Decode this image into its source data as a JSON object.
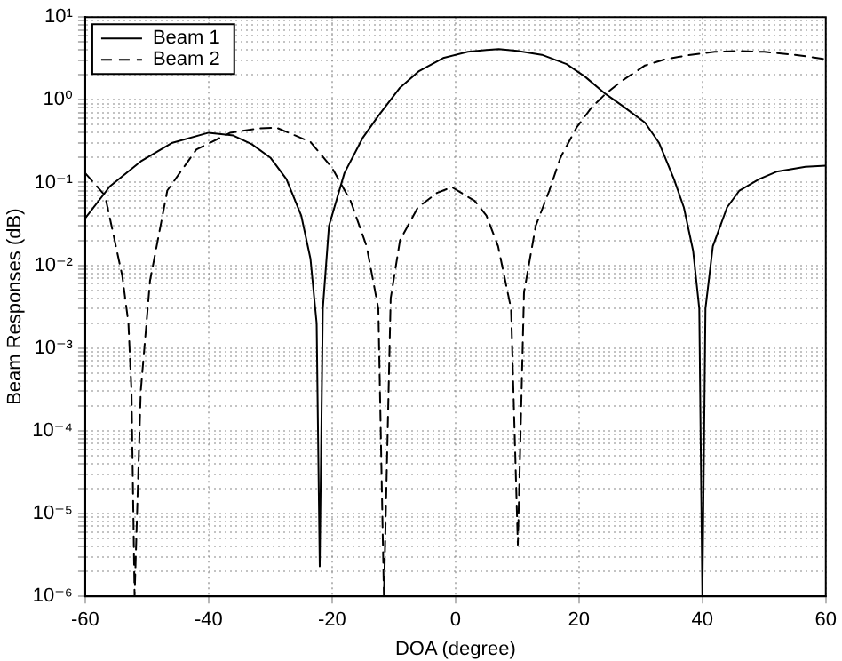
{
  "chart_data": {
    "type": "line",
    "xlabel": "DOA (degree)",
    "ylabel": "Beam Responses (dB)",
    "log": "y",
    "grid": true,
    "legend": "top left",
    "marker": "none",
    "xlim": [
      -60,
      60
    ],
    "xticks": [
      -60,
      -40,
      -20,
      0,
      20,
      40,
      60
    ],
    "ylim": [
      1e-06,
      10
    ],
    "yticks": [
      {
        "value": 1e-06,
        "label": "10⁻⁶"
      },
      {
        "value": 2e-06,
        "label": null
      },
      {
        "value": 3e-06,
        "label": null
      },
      {
        "value": 4e-06,
        "label": null
      },
      {
        "value": 5e-06,
        "label": null
      },
      {
        "value": 6e-06,
        "label": null
      },
      {
        "value": 7e-06,
        "label": null
      },
      {
        "value": 8e-06,
        "label": null
      },
      {
        "value": 9e-06,
        "label": null
      },
      {
        "value": 1e-05,
        "label": "10⁻⁵"
      },
      {
        "value": 2e-05,
        "label": null
      },
      {
        "value": 3e-05,
        "label": null
      },
      {
        "value": 4e-05,
        "label": null
      },
      {
        "value": 5e-05,
        "label": null
      },
      {
        "value": 6e-05,
        "label": null
      },
      {
        "value": 7e-05,
        "label": null
      },
      {
        "value": 8e-05,
        "label": null
      },
      {
        "value": 9e-05,
        "label": null
      },
      {
        "value": 0.0001,
        "label": "10⁻⁴"
      },
      {
        "value": 0.0002,
        "label": null
      },
      {
        "value": 0.0003,
        "label": null
      },
      {
        "value": 0.0004,
        "label": null
      },
      {
        "value": 0.0005,
        "label": null
      },
      {
        "value": 0.0006,
        "label": null
      },
      {
        "value": 0.0007,
        "label": null
      },
      {
        "value": 0.0008,
        "label": null
      },
      {
        "value": 0.0009,
        "label": null
      },
      {
        "value": 0.001,
        "label": "10⁻³"
      },
      {
        "value": 0.002,
        "label": null
      },
      {
        "value": 0.003,
        "label": null
      },
      {
        "value": 0.004,
        "label": null
      },
      {
        "value": 0.005,
        "label": null
      },
      {
        "value": 0.006,
        "label": null
      },
      {
        "value": 0.007,
        "label": null
      },
      {
        "value": 0.008,
        "label": null
      },
      {
        "value": 0.009,
        "label": null
      },
      {
        "value": 0.01,
        "label": "10⁻²"
      },
      {
        "value": 0.02,
        "label": null
      },
      {
        "value": 0.03,
        "label": null
      },
      {
        "value": 0.04,
        "label": null
      },
      {
        "value": 0.05,
        "label": null
      },
      {
        "value": 0.06,
        "label": null
      },
      {
        "value": 0.07,
        "label": null
      },
      {
        "value": 0.08,
        "label": null
      },
      {
        "value": 0.09,
        "label": null
      },
      {
        "value": 0.1,
        "label": "10⁻¹"
      },
      {
        "value": 0.2,
        "label": null
      },
      {
        "value": 0.3,
        "label": null
      },
      {
        "value": 0.4,
        "label": null
      },
      {
        "value": 0.5,
        "label": null
      },
      {
        "value": 0.6,
        "label": null
      },
      {
        "value": 0.7,
        "label": null
      },
      {
        "value": 0.8,
        "label": null
      },
      {
        "value": 0.9,
        "label": null
      },
      {
        "value": 1,
        "label": "10⁰"
      },
      {
        "value": 2,
        "label": null
      },
      {
        "value": 3,
        "label": null
      },
      {
        "value": 4,
        "label": null
      },
      {
        "value": 5,
        "label": null
      },
      {
        "value": 6,
        "label": null
      },
      {
        "value": 7,
        "label": null
      },
      {
        "value": 8,
        "label": null
      },
      {
        "value": 9,
        "label": null
      },
      {
        "value": 10,
        "label": "10¹"
      }
    ],
    "series": [
      {
        "name": "Beam 1",
        "color": "#000000",
        "line_style": "solid",
        "x": [
          -60,
          -56,
          -51,
          -46,
          -40,
          -36,
          -33,
          -30,
          -27.4,
          -25,
          -23.5,
          -22.5,
          -22,
          -21.5,
          -20.5,
          -18,
          -15,
          -12.5,
          -9,
          -6,
          -2,
          2,
          5,
          7,
          10,
          14,
          18,
          21,
          24.3,
          27,
          30.7,
          33,
          35.4,
          37,
          38.5,
          39.5,
          40,
          40.5,
          41.7,
          44,
          46,
          49.2,
          52,
          56.7,
          60
        ],
        "values": [
          0.037,
          0.09,
          0.18,
          0.3,
          0.4,
          0.37,
          0.29,
          0.2,
          0.11,
          0.04,
          0.012,
          0.002,
          2.3e-06,
          0.003,
          0.03,
          0.13,
          0.35,
          0.64,
          1.4,
          2.2,
          3.2,
          3.8,
          4,
          4.1,
          3.9,
          3.5,
          2.7,
          1.9,
          1.18,
          0.85,
          0.53,
          0.3,
          0.11,
          0.05,
          0.015,
          0.003,
          1e-06,
          0.003,
          0.017,
          0.05,
          0.08,
          0.11,
          0.135,
          0.155,
          0.16
        ]
      },
      {
        "name": "Beam 2",
        "color": "#000000",
        "line_style": "dashed",
        "x": [
          -60,
          -56.8,
          -54,
          -53,
          -52.5,
          -52,
          -51,
          -49.5,
          -46.7,
          -42,
          -36.5,
          -32,
          -29,
          -23.5,
          -20,
          -17,
          -14.4,
          -12.5,
          -11.6,
          -10.5,
          -9,
          -6.1,
          -3,
          -0.6,
          3.1,
          5,
          6.9,
          9,
          10.1,
          11.1,
          13,
          15.2,
          17,
          19.6,
          22,
          24.3,
          27,
          30.7,
          34,
          38.1,
          42,
          45.6,
          50,
          55,
          60
        ],
        "values": [
          0.13,
          0.07,
          0.0075,
          0.002,
          0.0003,
          1e-06,
          0.0003,
          0.0065,
          0.08,
          0.25,
          0.4,
          0.45,
          0.46,
          0.31,
          0.15,
          0.06,
          0.017,
          0.003,
          1e-06,
          0.004,
          0.02,
          0.05,
          0.075,
          0.088,
          0.06,
          0.04,
          0.017,
          0.003,
          4.2e-06,
          0.0047,
          0.03,
          0.08,
          0.2,
          0.46,
          0.8,
          1.18,
          1.7,
          2.6,
          3.1,
          3.5,
          3.8,
          3.9,
          3.8,
          3.5,
          3.1
        ]
      }
    ]
  }
}
